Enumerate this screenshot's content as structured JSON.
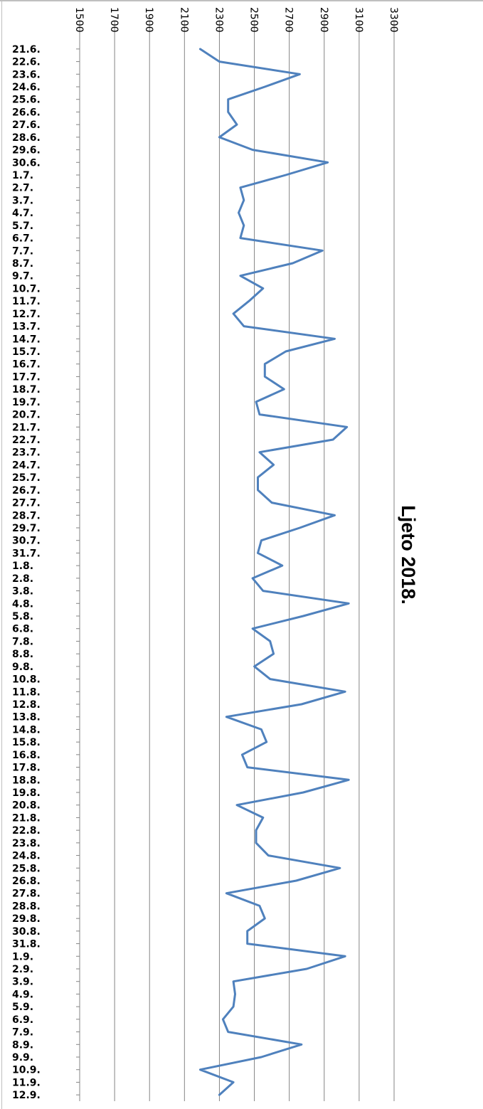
{
  "chart_data": {
    "type": "line",
    "title": "Ljeto 2018.",
    "xlabel": "",
    "ylabel": "",
    "ylim": [
      1500,
      3300
    ],
    "yticks": [
      "1500",
      "1700",
      "1900",
      "2100",
      "2300",
      "2500",
      "2700",
      "2900",
      "3100",
      "3300"
    ],
    "grid": true,
    "series_color": "#4f81bd",
    "categories": [
      "21.6.",
      "22.6.",
      "23.6.",
      "24.6.",
      "25.6.",
      "26.6.",
      "27.6.",
      "28.6.",
      "29.6.",
      "30.6.",
      "1.7.",
      "2.7.",
      "3.7.",
      "4.7.",
      "5.7.",
      "6.7.",
      "7.7.",
      "8.7.",
      "9.7.",
      "10.7.",
      "11.7.",
      "12.7.",
      "13.7.",
      "14.7.",
      "15.7.",
      "16.7.",
      "17.7.",
      "18.7.",
      "19.7.",
      "20.7.",
      "21.7.",
      "22.7.",
      "23.7.",
      "24.7.",
      "25.7.",
      "26.7.",
      "27.7.",
      "28.7.",
      "29.7.",
      "30.7.",
      "31.7.",
      "1.8.",
      "2.8.",
      "3.8.",
      "4.8.",
      "5.8.",
      "6.8.",
      "7.8.",
      "8.8.",
      "9.8.",
      "10.8.",
      "11.8.",
      "12.8.",
      "13.8.",
      "14.8.",
      "15.8.",
      "16.8.",
      "17.8.",
      "18.8.",
      "19.8.",
      "20.8.",
      "21.8.",
      "22.8.",
      "23.8.",
      "24.8.",
      "25.8.",
      "26.8.",
      "27.8.",
      "28.8.",
      "29.8.",
      "30.8.",
      "31.8.",
      "1.9.",
      "2.9.",
      "3.9.",
      "4.9.",
      "5.9.",
      "6.9.",
      "7.9.",
      "8.9.",
      "9.9.",
      "10.9.",
      "11.9.",
      "12.9."
    ],
    "values": [
      2190,
      2300,
      2760,
      2560,
      2350,
      2350,
      2400,
      2300,
      2490,
      2920,
      2680,
      2420,
      2440,
      2410,
      2440,
      2420,
      2890,
      2720,
      2420,
      2550,
      2470,
      2380,
      2440,
      2960,
      2680,
      2560,
      2560,
      2670,
      2510,
      2530,
      3030,
      2950,
      2530,
      2610,
      2520,
      2520,
      2600,
      2960,
      2760,
      2540,
      2520,
      2660,
      2490,
      2550,
      3040,
      2780,
      2490,
      2590,
      2610,
      2500,
      2590,
      3020,
      2770,
      2340,
      2540,
      2570,
      2430,
      2460,
      3040,
      2780,
      2400,
      2550,
      2510,
      2510,
      2580,
      2990,
      2740,
      2340,
      2530,
      2560,
      2460,
      2460,
      3020,
      2800,
      2380,
      2390,
      2380,
      2320,
      2350,
      2770,
      2540,
      2190,
      2380,
      2300
    ]
  }
}
